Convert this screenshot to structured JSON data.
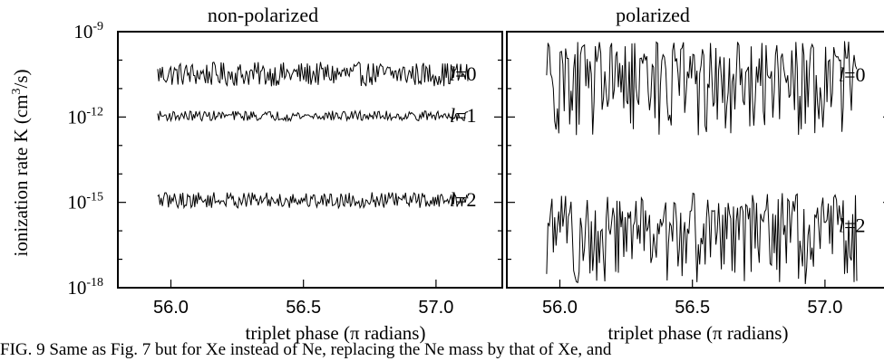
{
  "caption": "FIG. 9    Same as Fig. 7 but for Xe instead of Ne, replacing the Ne mass by that of Xe, and",
  "chart_data": [
    {
      "type": "line",
      "title": "non-polarized",
      "xlabel": "triplet phase  (π radians)",
      "ylabel": "ionization rate K  (cm³/s)",
      "ylabel_parts": {
        "main": "ionization rate K  (cm",
        "sup": "3",
        "tail": "/s)"
      },
      "yscale": "log",
      "ylim": [
        1e-18,
        1e-09
      ],
      "xlim": [
        55.8,
        57.25
      ],
      "xticks": [
        56.0,
        56.5,
        57.0
      ],
      "xtick_labels": [
        "56.0",
        "56.5",
        "57.0"
      ],
      "yticks": [
        1e-18,
        1e-15,
        1e-12,
        1e-09
      ],
      "ytick_labels": [
        {
          "base": "10",
          "exp": "-18"
        },
        {
          "base": "10",
          "exp": "-15"
        },
        {
          "base": "10",
          "exp": "-12"
        },
        {
          "base": "10",
          "exp": "-9"
        }
      ],
      "grid": false,
      "x_range": [
        55.95,
        57.12
      ],
      "series": [
        {
          "label_italic": "l",
          "label_rest": "=0",
          "center": 3.2e-11,
          "spread_decades": 0.85,
          "points": 260
        },
        {
          "label_italic": "l",
          "label_rest": "=1",
          "center": 1.1e-12,
          "spread_decades": 0.35,
          "points": 260
        },
        {
          "label_italic": "l",
          "label_rest": "=2",
          "center": 1.2e-15,
          "spread_decades": 0.55,
          "points": 260
        }
      ]
    },
    {
      "type": "line",
      "title": "polarized",
      "xlabel": "triplet phase  (π radians)",
      "yscale": "log",
      "ylim": [
        1e-18,
        1e-09
      ],
      "xlim": [
        55.8,
        57.25
      ],
      "xticks": [
        56.0,
        56.5,
        57.0
      ],
      "xtick_labels": [
        "56.0",
        "56.5",
        "57.0"
      ],
      "grid": false,
      "x_range": [
        55.95,
        57.12
      ],
      "series": [
        {
          "label_italic": "l",
          "label_rest": "=0",
          "center": 3e-11,
          "spread_decades": 2.4,
          "points": 230
        },
        {
          "label_italic": "l",
          "label_rest": "=2",
          "center": 1.5e-16,
          "spread_decades": 2.3,
          "points": 230
        }
      ]
    }
  ]
}
